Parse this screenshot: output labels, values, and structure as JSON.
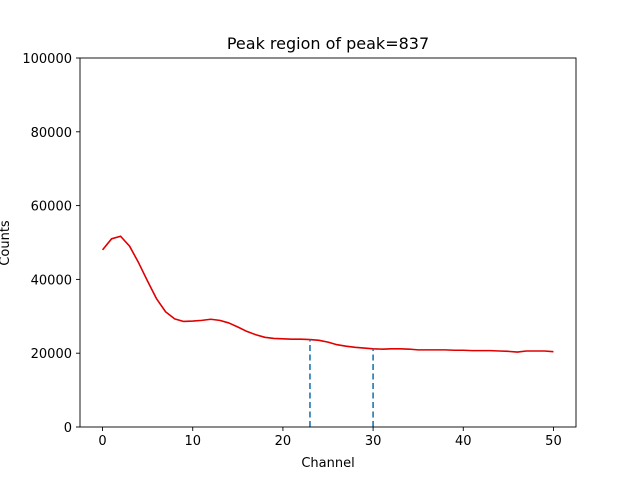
{
  "chart_data": {
    "type": "line",
    "title": "Peak region of peak=837",
    "xlabel": "Channel",
    "ylabel": "Counts",
    "xlim": [
      -2.5,
      52.5
    ],
    "ylim": [
      0,
      100000
    ],
    "xticks": [
      0,
      10,
      20,
      30,
      40,
      50
    ],
    "yticks": [
      0,
      20000,
      40000,
      60000,
      80000,
      100000
    ],
    "grid": false,
    "series": [
      {
        "color": "#e00000",
        "x": [
          0,
          1,
          2,
          3,
          4,
          5,
          6,
          7,
          8,
          9,
          10,
          11,
          12,
          13,
          14,
          15,
          16,
          17,
          18,
          19,
          20,
          21,
          22,
          23,
          24,
          25,
          26,
          27,
          28,
          29,
          30,
          31,
          32,
          33,
          34,
          35,
          36,
          37,
          38,
          39,
          40,
          41,
          42,
          43,
          44,
          45,
          46,
          47,
          48,
          49,
          50
        ],
        "y": [
          48000,
          51000,
          51700,
          49000,
          44500,
          39500,
          34700,
          31200,
          29300,
          28600,
          28700,
          28900,
          29200,
          28900,
          28200,
          27100,
          25900,
          25000,
          24300,
          24000,
          23900,
          23800,
          23800,
          23700,
          23500,
          23000,
          22300,
          21900,
          21600,
          21400,
          21200,
          21100,
          21200,
          21200,
          21100,
          20900,
          20900,
          20900,
          20900,
          20800,
          20800,
          20700,
          20700,
          20700,
          20600,
          20500,
          20300,
          20600,
          20600,
          20600,
          20400
        ]
      }
    ],
    "markers": [
      {
        "x": 23,
        "y_top": 23700,
        "color": "#1f77b4",
        "style": "dashed"
      },
      {
        "x": 30,
        "y_top": 21200,
        "color": "#1f77b4",
        "style": "dashed"
      }
    ]
  }
}
